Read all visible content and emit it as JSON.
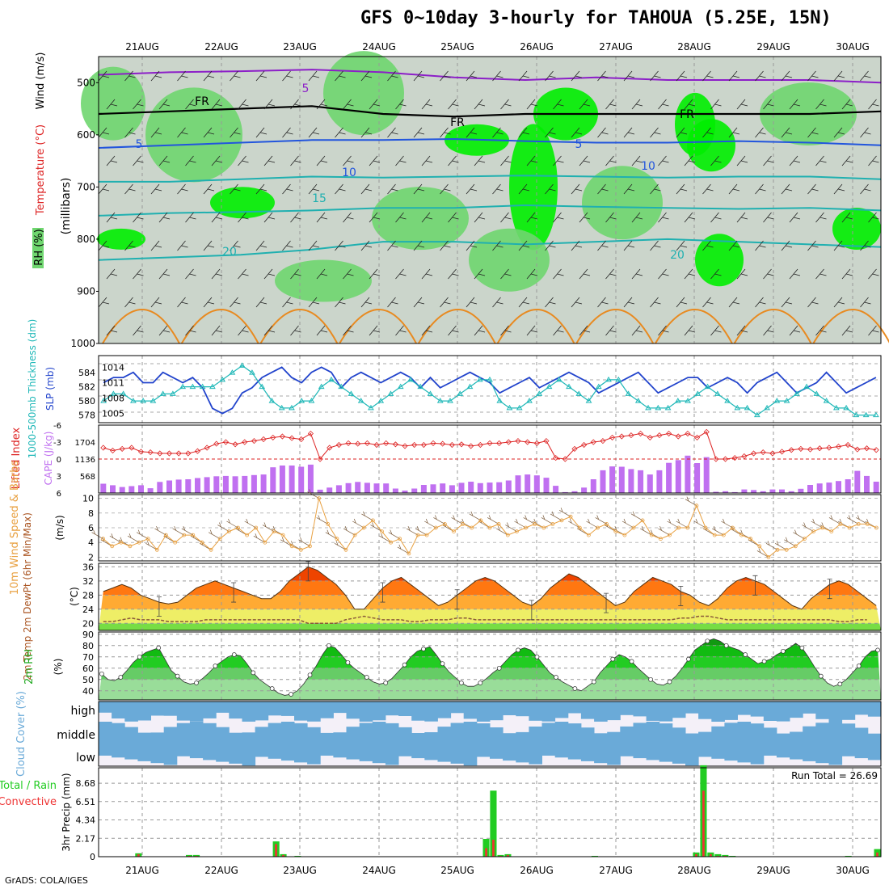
{
  "title": "GFS 0~10day 3-hourly for TAHOUA (5.25E, 15N)",
  "credit": "GrADS: COLA/IGES",
  "run_total": "Run Total = 26.69",
  "colors": {
    "rh_light": "#cbd5cb",
    "rh_green": "#6fd66f",
    "rh_bright": "#00ee00",
    "temp_purple": "#8c1fc8",
    "temp_blue": "#2255dd",
    "temp_cyan": "#20b0b0",
    "temp_orange": "#e88a20",
    "slp": "#2244cc",
    "thk": "#20b8b8",
    "li": "#dd2222",
    "cape": "#c070f0",
    "wind": "#e8a040",
    "rain_total": "#22cc22",
    "rain_conv": "#ee3333",
    "cloud": "#6aaad8"
  },
  "chart_data": [
    {
      "panel": "upper-air",
      "type": "heatmap",
      "ylabel_rh": "RH (%)",
      "ylabel_temp": "Temperature (°C)",
      "ylabel_wind": "Wind (m/s)",
      "ylabel_units": "(millibars)",
      "x": [
        "21AUG",
        "22AUG",
        "23AUG",
        "24AUG",
        "25AUG",
        "26AUG",
        "27AUG",
        "28AUG",
        "29AUG",
        "30AUG"
      ],
      "yticks": [
        "500",
        "600",
        "700",
        "800",
        "900",
        "1000"
      ],
      "ylim": [
        1000,
        450
      ],
      "contour_labels": [
        "5",
        "5",
        "10",
        "10",
        "15",
        "20",
        "20",
        "5",
        "FR",
        "FR",
        "FR"
      ],
      "isotherms": [
        {
          "value": 5,
          "color": "temp_blue",
          "y": [
            625,
            620,
            615,
            610,
            610,
            608,
            612,
            615,
            615,
            612,
            615,
            620
          ]
        },
        {
          "value": 10,
          "color": "temp_cyan",
          "y": [
            690,
            690,
            685,
            680,
            682,
            680,
            678,
            680,
            682,
            680,
            680,
            685
          ]
        },
        {
          "value": 15,
          "color": "temp_cyan",
          "y": [
            755,
            750,
            748,
            745,
            740,
            740,
            735,
            738,
            740,
            742,
            740,
            745
          ]
        },
        {
          "value": 20,
          "color": "temp_cyan",
          "y": [
            840,
            835,
            830,
            820,
            805,
            805,
            810,
            805,
            800,
            805,
            810,
            815
          ]
        },
        {
          "value": 0,
          "label": "FR",
          "color": "black",
          "y": [
            560,
            555,
            550,
            545,
            560,
            565,
            560,
            560,
            560,
            560,
            560,
            555
          ]
        },
        {
          "value": -5,
          "color": "temp_purple",
          "y": [
            485,
            480,
            478,
            475,
            480,
            490,
            495,
            490,
            495,
            495,
            495,
            500
          ]
        }
      ]
    },
    {
      "panel": "slp-thickness",
      "type": "line",
      "ylabel_left": "1000-500mb Thickness (dm)",
      "ylabel_right": "SLP (mb)",
      "yticks_left": [
        "578",
        "580",
        "582",
        "584"
      ],
      "yticks_right": [
        "1005",
        "1008",
        "1011",
        "1014"
      ],
      "series": [
        {
          "name": "SLP",
          "axis": "right",
          "values": [
            1011,
            1012,
            1012,
            1013,
            1011,
            1011,
            1013,
            1012,
            1011,
            1012,
            1010,
            1006,
            1005,
            1006,
            1009,
            1010,
            1012,
            1013,
            1014,
            1012,
            1011,
            1013,
            1014,
            1013,
            1010,
            1012,
            1013,
            1012,
            1011,
            1012,
            1013,
            1012,
            1010,
            1012,
            1010,
            1011,
            1012,
            1013,
            1012,
            1011,
            1009,
            1010,
            1011,
            1012,
            1010,
            1011,
            1012,
            1013,
            1012,
            1011,
            1009,
            1010,
            1011,
            1012,
            1013,
            1011,
            1009,
            1010,
            1011,
            1012,
            1012,
            1010,
            1011,
            1012,
            1011,
            1009,
            1011,
            1012,
            1013,
            1011,
            1009,
            1010,
            1011,
            1013,
            1011,
            1009,
            1010,
            1011,
            1012
          ]
        },
        {
          "name": "Thickness",
          "axis": "left",
          "values": [
            580,
            581,
            581,
            580,
            580,
            580,
            581,
            581,
            582,
            582,
            582,
            582,
            583,
            584,
            585,
            584,
            582,
            580,
            579,
            579,
            580,
            580,
            582,
            583,
            582,
            581,
            580,
            579,
            580,
            581,
            582,
            583,
            582,
            581,
            580,
            580,
            581,
            582,
            583,
            583,
            580,
            579,
            579,
            580,
            581,
            582,
            583,
            582,
            581,
            580,
            582,
            583,
            583,
            581,
            580,
            579,
            579,
            579,
            580,
            580,
            581,
            582,
            581,
            580,
            579,
            579,
            578,
            579,
            580,
            580,
            581,
            582,
            581,
            580,
            579,
            579,
            578,
            578,
            578
          ]
        }
      ]
    },
    {
      "panel": "li-cape",
      "type": "bar",
      "ylabel_left": "Lifted Index",
      "ylabel_right": "CAPE (J/kg)",
      "yticks_left": [
        "6",
        "3",
        "0",
        "-3",
        "-6"
      ],
      "yticks_right": [
        "568",
        "1136",
        "1704"
      ],
      "cape": [
        310,
        260,
        200,
        230,
        260,
        160,
        370,
        420,
        450,
        460,
        500,
        530,
        560,
        570,
        560,
        570,
        600,
        620,
        860,
        920,
        920,
        880,
        950,
        110,
        180,
        260,
        330,
        370,
        340,
        320,
        320,
        150,
        80,
        150,
        270,
        290,
        320,
        260,
        340,
        380,
        330,
        350,
        360,
        420,
        590,
        620,
        590,
        510,
        240,
        30,
        60,
        180,
        460,
        760,
        890,
        880,
        800,
        760,
        620,
        760,
        1010,
        1100,
        1250,
        1000,
        1200,
        40,
        60,
        30,
        120,
        100,
        60,
        120,
        120,
        60,
        140,
        270,
        320,
        350,
        400,
        460,
        740,
        570,
        380
      ],
      "li": [
        -2,
        -1.5,
        -1.8,
        -2,
        -1.3,
        -1.2,
        -1,
        -1,
        -1,
        -1,
        -1.4,
        -2,
        -2.7,
        -3,
        -2.6,
        -3,
        -3.2,
        -3.5,
        -3.8,
        -4,
        -3.7,
        -3.5,
        -4.5,
        0,
        -2,
        -2.5,
        -2.8,
        -2.7,
        -2.8,
        -2.5,
        -2.8,
        -2.6,
        -2.3,
        -2.5,
        -2.5,
        -2.8,
        -2.7,
        -2.5,
        -2.6,
        -2.3,
        -2.5,
        -2.8,
        -2.8,
        -3,
        -3.2,
        -3,
        -2.8,
        -3.2,
        -0.2,
        0,
        -1.8,
        -2.5,
        -3,
        -3.2,
        -3.8,
        -4,
        -4.2,
        -4.5,
        -3.8,
        -4.2,
        -4.5,
        -4,
        -4.5,
        -3.8,
        -4.8,
        0,
        0,
        -0.2,
        -0.5,
        -1,
        -1.2,
        -1,
        -1.3,
        -1.6,
        -1.8,
        -1.7,
        -1.9,
        -2,
        -2.2,
        -2.5,
        -1.7,
        -1.9,
        -1.6
      ]
    },
    {
      "panel": "10m-wind",
      "type": "line",
      "ylabel_left": "10m Wind Speed & Barbs",
      "ylabel_units": "(m/s)",
      "yticks": [
        "2",
        "4",
        "6",
        "8",
        "10"
      ],
      "ylim": [
        1.5,
        10.5
      ],
      "values": [
        4.5,
        3.5,
        4,
        3.5,
        4,
        4.5,
        3,
        5,
        4,
        5,
        5,
        4,
        3,
        4.5,
        5.5,
        6,
        5,
        6,
        4,
        5.5,
        5,
        3.5,
        3,
        3.5,
        10,
        6.5,
        4.5,
        3,
        5,
        6,
        7,
        5.5,
        4,
        4.5,
        2.5,
        5,
        5,
        6,
        6.5,
        5.5,
        6.5,
        6,
        7,
        6,
        6.5,
        5,
        5.5,
        6,
        6.5,
        6,
        6.5,
        7,
        7.5,
        6,
        5,
        6,
        6.5,
        5.5,
        5,
        6,
        7,
        5,
        4.5,
        5,
        6,
        6,
        9,
        6,
        5,
        5,
        6,
        5,
        4.5,
        3.5,
        2,
        3,
        3,
        3.5,
        4.5,
        5.5,
        6,
        5.5,
        6.5,
        6,
        6.5,
        6.5,
        6
      ]
    },
    {
      "panel": "2m-temp",
      "type": "area",
      "ylabel_left": "2m Temp 2m DewPt (6hr Min/Max)",
      "ylabel_units": "(°C)",
      "yticks": [
        "20",
        "24",
        "28",
        "32",
        "36"
      ],
      "ylim": [
        18,
        37
      ],
      "temp": [
        29,
        30,
        31,
        30,
        28,
        27,
        26,
        25.5,
        26,
        28,
        30,
        31,
        32,
        31,
        30,
        29,
        28,
        27,
        27,
        29,
        32,
        34,
        36,
        35,
        33,
        31,
        28,
        24,
        24,
        27,
        30,
        32,
        33,
        31,
        29,
        27,
        25,
        26,
        28,
        30,
        32,
        33,
        32,
        30,
        28,
        26,
        25,
        27,
        30,
        32,
        34,
        33,
        31,
        29,
        27,
        25,
        26,
        29,
        31,
        33,
        32,
        31,
        29,
        28,
        26,
        25,
        27,
        30,
        32,
        33,
        32,
        31,
        29,
        27,
        25,
        24,
        27,
        29,
        31,
        32,
        31,
        29,
        27,
        25
      ],
      "dewpt": [
        20.5,
        20.5,
        21,
        21.5,
        21,
        21,
        21,
        20.5,
        20.5,
        20.5,
        20.5,
        21,
        21,
        21,
        21,
        21,
        21,
        21,
        21,
        21,
        21,
        21,
        20,
        20,
        20,
        20,
        21,
        21.5,
        22,
        21.5,
        21,
        21,
        21,
        20.5,
        20.5,
        21,
        21,
        21,
        21.5,
        21.5,
        21,
        21,
        21,
        21,
        21,
        21,
        21,
        21,
        21,
        21,
        21,
        21,
        21,
        21,
        21,
        21,
        21,
        21,
        21,
        21,
        21,
        21,
        21.5,
        21.5,
        22,
        22,
        21.5,
        21,
        21,
        21,
        21,
        21,
        21,
        21,
        21,
        21,
        21,
        21,
        21,
        20.5,
        20.5,
        21,
        21
      ]
    },
    {
      "panel": "2m-rh",
      "type": "area",
      "ylabel_left": "2m RH",
      "ylabel_units": "(%)",
      "yticks": [
        "40",
        "50",
        "60",
        "70",
        "80",
        "90"
      ],
      "ylim": [
        32,
        92
      ],
      "values": [
        55,
        50,
        49,
        52,
        58,
        65,
        70,
        74,
        76,
        78,
        68,
        58,
        53,
        48,
        46,
        47,
        51,
        56,
        62,
        66,
        70,
        72,
        71,
        64,
        56,
        50,
        46,
        42,
        38,
        36,
        37,
        40,
        46,
        54,
        62,
        72,
        80,
        78,
        72,
        65,
        60,
        56,
        52,
        48,
        46,
        47,
        51,
        57,
        63,
        70,
        75,
        77,
        79,
        72,
        64,
        57,
        52,
        47,
        44,
        44,
        47,
        51,
        56,
        60,
        66,
        72,
        76,
        78,
        76,
        70,
        63,
        56,
        52,
        48,
        45,
        42,
        40,
        44,
        48,
        56,
        62,
        68,
        72,
        70,
        66,
        60,
        55,
        50,
        46,
        45,
        48,
        53,
        60,
        68,
        76,
        80,
        84,
        86,
        84,
        80,
        78,
        76,
        72,
        68,
        64,
        66,
        68,
        72,
        75,
        78,
        82,
        78,
        70,
        61,
        53,
        47,
        44,
        46,
        50,
        56,
        62,
        70,
        75,
        76
      ],
      "note": "relative humidity in percent"
    },
    {
      "panel": "cloud-cover",
      "type": "heatmap",
      "ylabel": "Cloud Cover (%)",
      "levels": [
        "high",
        "middle",
        "low"
      ]
    },
    {
      "panel": "precip",
      "type": "bar",
      "ylabel_left": "Total / Rain",
      "ylabel_left2": "Convective",
      "ylabel_units": "3hr Precip (mm)",
      "yticks": [
        "0",
        "2.17",
        "4.34",
        "6.51",
        "8.68"
      ],
      "ylim": [
        0,
        10.5
      ],
      "total": [
        0,
        0,
        0,
        0,
        0,
        0.4,
        0,
        0,
        0,
        0,
        0,
        0,
        0.2,
        0.2,
        0,
        0,
        0,
        0,
        0,
        0,
        0,
        0,
        0,
        0,
        1.8,
        0.3,
        0,
        0.1,
        0,
        0,
        0,
        0,
        0,
        0,
        0,
        0,
        0,
        0,
        0,
        0,
        0,
        0,
        0,
        0,
        0,
        0,
        0,
        0,
        0,
        0,
        0,
        0,
        0,
        2.1,
        7.8,
        0.2,
        0.3,
        0,
        0,
        0,
        0,
        0,
        0,
        0,
        0,
        0,
        0,
        0,
        0.1,
        0,
        0,
        0,
        0,
        0,
        0,
        0,
        0,
        0,
        0,
        0,
        0,
        0,
        0.5,
        10.8,
        0.5,
        0.3,
        0.2,
        0.1,
        0,
        0,
        0,
        0,
        0,
        0,
        0,
        0,
        0,
        0,
        0,
        0,
        0,
        0,
        0,
        0.1,
        0,
        0,
        0,
        0.9
      ],
      "conv": [
        0,
        0,
        0,
        0,
        0,
        0.3,
        0,
        0,
        0,
        0,
        0,
        0,
        0.1,
        0.1,
        0,
        0,
        0,
        0,
        0,
        0,
        0,
        0,
        0,
        0,
        1.5,
        0.2,
        0,
        0,
        0,
        0,
        0,
        0,
        0,
        0,
        0,
        0,
        0,
        0,
        0,
        0,
        0,
        0,
        0,
        0,
        0,
        0,
        0,
        0,
        0,
        0,
        0,
        0,
        0,
        1.0,
        2.0,
        0.1,
        0.2,
        0,
        0,
        0,
        0,
        0,
        0,
        0,
        0,
        0,
        0,
        0,
        0,
        0,
        0,
        0,
        0,
        0,
        0,
        0,
        0,
        0,
        0,
        0,
        0,
        0,
        0.3,
        7.8,
        0.3,
        0.1,
        0.1,
        0,
        0,
        0,
        0,
        0,
        0,
        0,
        0,
        0,
        0,
        0,
        0,
        0,
        0,
        0,
        0,
        0,
        0,
        0,
        0,
        0.5
      ]
    }
  ]
}
